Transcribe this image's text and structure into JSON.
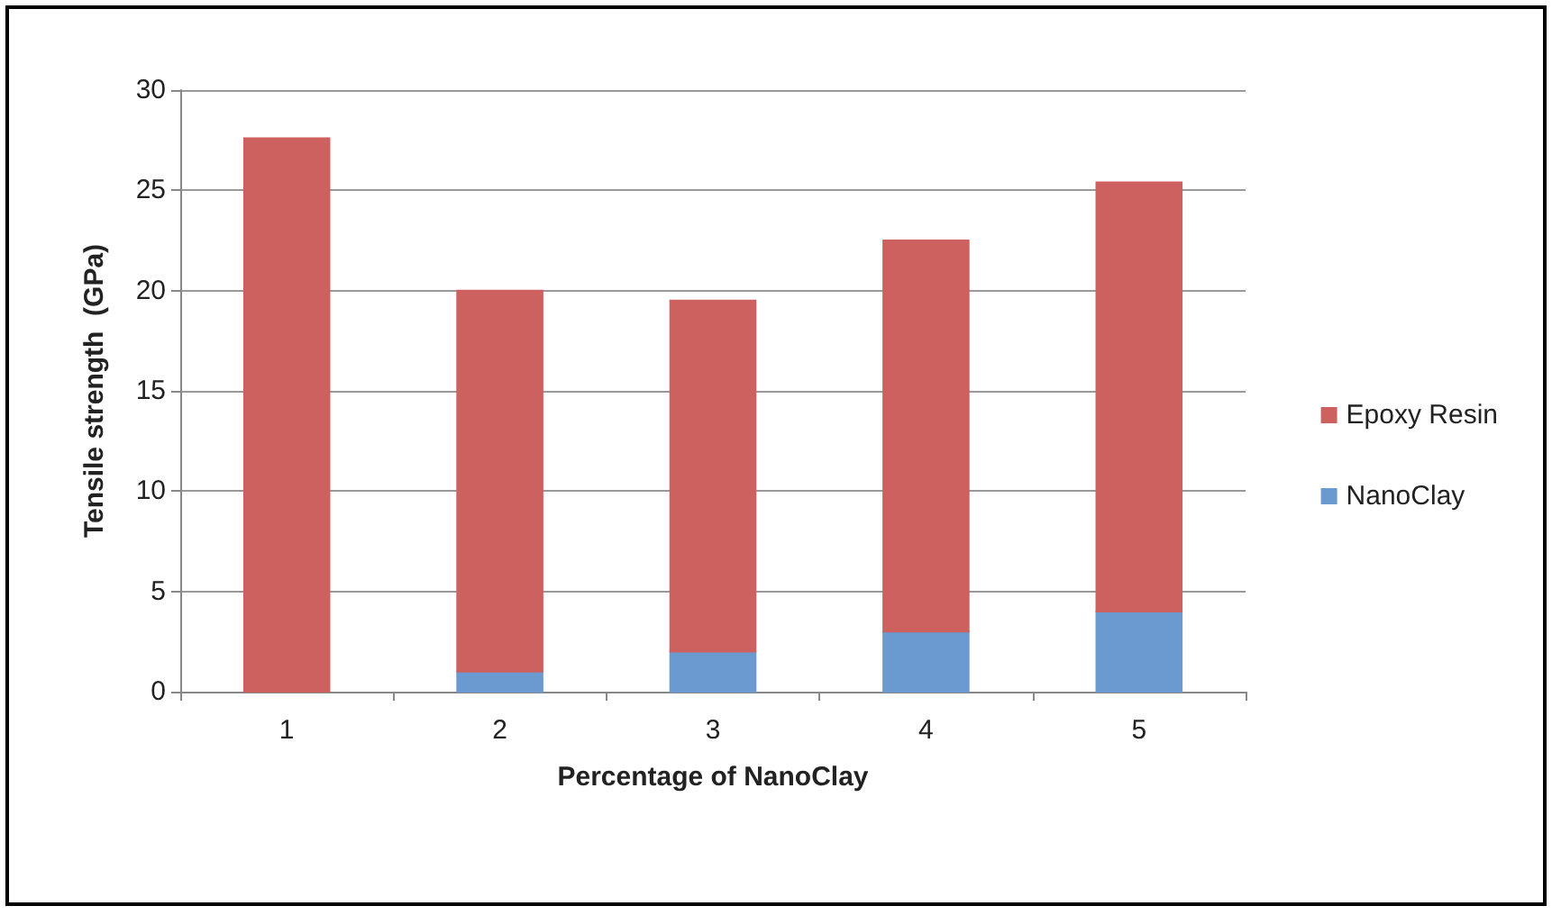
{
  "chart_data": {
    "type": "bar",
    "stacked": true,
    "xlabel": "Percentage of NanoClay",
    "ylabel": "Tensile strength  (GPa)",
    "categories": [
      "1",
      "2",
      "3",
      "4",
      "5"
    ],
    "series": [
      {
        "name": "NanoClay",
        "color": "#6a9ad0",
        "values": [
          0,
          1,
          2,
          3,
          4
        ]
      },
      {
        "name": "Epoxy Resin",
        "color": "#cd6160",
        "values": [
          27.6,
          19,
          17.5,
          19.5,
          21.4
        ]
      }
    ],
    "ylim": [
      0,
      30
    ],
    "yticks": [
      0,
      5,
      10,
      15,
      20,
      25,
      30
    ],
    "grid": "y",
    "legend": "right"
  }
}
